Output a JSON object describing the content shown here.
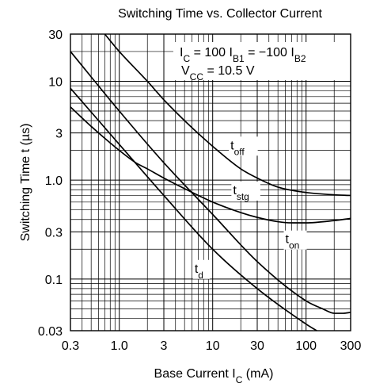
{
  "chart_data": {
    "type": "line",
    "title": "Switching Time vs. Collector Current",
    "xlabel": {
      "main": "Base Current  I",
      "sub": "C",
      "unit": "  (mA)"
    },
    "ylabel": "Switching Time  t  (µs)",
    "xscale": "log",
    "yscale": "log",
    "xlim": [
      0.3,
      300
    ],
    "ylim": [
      0.03,
      30
    ],
    "grid": true,
    "x_ticks": [
      {
        "value": 0.3,
        "label": "0.3"
      },
      {
        "value": 1,
        "label": "1.0"
      },
      {
        "value": 3,
        "label": "3"
      },
      {
        "value": 10,
        "label": "10"
      },
      {
        "value": 30,
        "label": "30"
      },
      {
        "value": 100,
        "label": "100"
      },
      {
        "value": 300,
        "label": "300"
      }
    ],
    "y_ticks": [
      {
        "value": 0.03,
        "label": "0.03"
      },
      {
        "value": 0.1,
        "label": "0.1"
      },
      {
        "value": 0.3,
        "label": "0.3"
      },
      {
        "value": 1,
        "label": "1.0"
      },
      {
        "value": 3,
        "label": "3"
      },
      {
        "value": 10,
        "label": "10"
      },
      {
        "value": 30,
        "label": "30"
      }
    ],
    "annotations": [
      {
        "parts": [
          {
            "t": "I"
          },
          {
            "t": "C",
            "sub": true
          },
          {
            "t": " = 100 I"
          },
          {
            "t": "B1",
            "sub": true
          },
          {
            "t": " = −100 I"
          },
          {
            "t": "B2",
            "sub": true
          }
        ]
      },
      {
        "parts": [
          {
            "t": "V"
          },
          {
            "t": "CC",
            "sub": true
          },
          {
            "t": " = 10.5 V"
          }
        ]
      }
    ],
    "series": [
      {
        "name": "t_off",
        "label_main": "t",
        "label_sub": "off",
        "x": [
          0.7,
          1,
          2,
          3,
          5,
          10,
          20,
          30,
          50,
          100,
          200,
          300
        ],
        "y": [
          30,
          20,
          10,
          6.5,
          4,
          2.2,
          1.3,
          1.05,
          0.85,
          0.75,
          0.71,
          0.7
        ]
      },
      {
        "name": "t_stg",
        "label_main": "t",
        "label_sub": "stg",
        "x": [
          0.3,
          0.5,
          1,
          1.5,
          2,
          3,
          5,
          10,
          20,
          30,
          50,
          70,
          100,
          200,
          300
        ],
        "y": [
          5.5,
          3.5,
          2,
          1.5,
          1.3,
          1.05,
          0.82,
          0.6,
          0.47,
          0.42,
          0.38,
          0.37,
          0.37,
          0.39,
          0.41
        ]
      },
      {
        "name": "t_on",
        "label_main": "t",
        "label_sub": "on",
        "x": [
          0.3,
          1,
          3,
          10,
          30,
          100,
          150,
          200,
          250,
          300
        ],
        "y": [
          20,
          5,
          1.5,
          0.45,
          0.15,
          0.06,
          0.05,
          0.045,
          0.045,
          0.046
        ]
      },
      {
        "name": "t_d",
        "label_main": "t",
        "label_sub": "d",
        "x": [
          0.3,
          1,
          3,
          10,
          30,
          100,
          130
        ],
        "y": [
          8.5,
          2.3,
          0.7,
          0.2,
          0.08,
          0.035,
          0.03
        ]
      }
    ]
  }
}
